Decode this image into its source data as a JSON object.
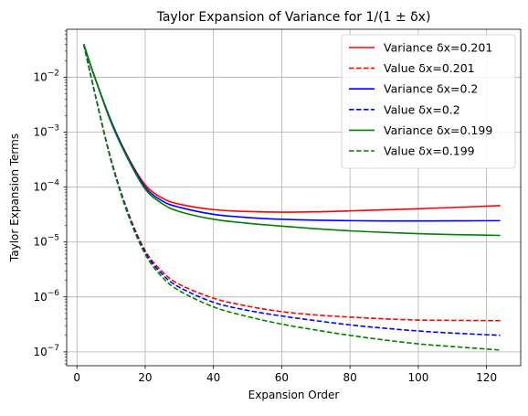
{
  "chart_data": {
    "type": "line",
    "title": "Taylor Expansion of Variance for 1/(1 ± δx)",
    "xlabel": "Expansion Order",
    "ylabel": "Taylor Expansion Terms",
    "xscale": "linear",
    "yscale": "log",
    "xlim": [
      -3,
      130
    ],
    "ylim": [
      5.6e-08,
      0.075
    ],
    "grid": true,
    "legend_position": "top-right",
    "x_ticks": [
      0,
      20,
      40,
      60,
      80,
      100,
      120
    ],
    "x_tick_labels": [
      "0",
      "20",
      "40",
      "60",
      "80",
      "100",
      "120"
    ],
    "y_ticks": [
      1e-07,
      1e-06,
      1e-05,
      0.0001,
      0.001,
      0.01
    ],
    "y_tick_labels": [
      {
        "base": "10",
        "exp": "−7"
      },
      {
        "base": "10",
        "exp": "−6"
      },
      {
        "base": "10",
        "exp": "−5"
      },
      {
        "base": "10",
        "exp": "−4"
      },
      {
        "base": "10",
        "exp": "−3"
      },
      {
        "base": "10",
        "exp": "−2"
      }
    ],
    "series": [
      {
        "name": "Variance δx=0.201",
        "color": "#ff0000",
        "dash": "solid",
        "x": [
          2,
          5,
          10,
          15,
          20,
          25,
          30,
          40,
          50,
          60,
          70,
          80,
          90,
          100,
          110,
          124
        ],
        "y": [
          0.04,
          0.011,
          0.0016,
          0.00035,
          0.00011,
          6.3e-05,
          4.9e-05,
          3.9e-05,
          3.6e-05,
          3.5e-05,
          3.55e-05,
          3.7e-05,
          3.85e-05,
          4.05e-05,
          4.25e-05,
          4.6e-05
        ]
      },
      {
        "name": "Value δx=0.201",
        "color": "#ff0000",
        "dash": "dashed",
        "x": [
          2,
          5,
          10,
          15,
          20,
          25,
          30,
          40,
          50,
          60,
          70,
          80,
          90,
          100,
          110,
          124
        ],
        "y": [
          0.04,
          0.006,
          0.00032,
          3.5e-05,
          7e-06,
          2.9e-06,
          1.7e-06,
          9.5e-07,
          6.8e-07,
          5.4e-07,
          4.7e-07,
          4.3e-07,
          4e-07,
          3.8e-07,
          3.75e-07,
          3.7e-07
        ]
      },
      {
        "name": "Variance δx=0.2",
        "color": "#0000ff",
        "dash": "solid",
        "x": [
          2,
          5,
          10,
          15,
          20,
          25,
          30,
          40,
          50,
          60,
          70,
          80,
          90,
          100,
          110,
          124
        ],
        "y": [
          0.04,
          0.011,
          0.0016,
          0.00034,
          0.0001,
          5.6e-05,
          4.3e-05,
          3.2e-05,
          2.8e-05,
          2.6e-05,
          2.5e-05,
          2.45e-05,
          2.42e-05,
          2.42e-05,
          2.43e-05,
          2.45e-05
        ]
      },
      {
        "name": "Value δx=0.2",
        "color": "#0000ff",
        "dash": "dashed",
        "x": [
          2,
          5,
          10,
          15,
          20,
          25,
          30,
          40,
          50,
          60,
          70,
          80,
          90,
          100,
          110,
          124
        ],
        "y": [
          0.04,
          0.006,
          0.00031,
          3.3e-05,
          6.5e-06,
          2.6e-06,
          1.5e-06,
          8e-07,
          5.7e-07,
          4.5e-07,
          3.7e-07,
          3.1e-07,
          2.7e-07,
          2.4e-07,
          2.2e-07,
          2e-07
        ]
      },
      {
        "name": "Variance δx=0.199",
        "color": "#008000",
        "dash": "solid",
        "x": [
          2,
          5,
          10,
          15,
          20,
          25,
          30,
          40,
          50,
          60,
          70,
          80,
          90,
          100,
          110,
          124
        ],
        "y": [
          0.04,
          0.011,
          0.0015,
          0.00032,
          9.2e-05,
          5e-05,
          3.6e-05,
          2.6e-05,
          2.2e-05,
          1.95e-05,
          1.75e-05,
          1.6e-05,
          1.5e-05,
          1.42e-05,
          1.37e-05,
          1.32e-05
        ]
      },
      {
        "name": "Value δx=0.199",
        "color": "#008000",
        "dash": "dashed",
        "x": [
          2,
          5,
          10,
          15,
          20,
          25,
          30,
          40,
          50,
          60,
          70,
          80,
          90,
          100,
          110,
          124
        ],
        "y": [
          0.04,
          0.006,
          0.0003,
          3.1e-05,
          6e-06,
          2.3e-06,
          1.3e-06,
          6.6e-07,
          4.4e-07,
          3.2e-07,
          2.5e-07,
          2e-07,
          1.65e-07,
          1.4e-07,
          1.25e-07,
          1.08e-07
        ]
      }
    ]
  }
}
